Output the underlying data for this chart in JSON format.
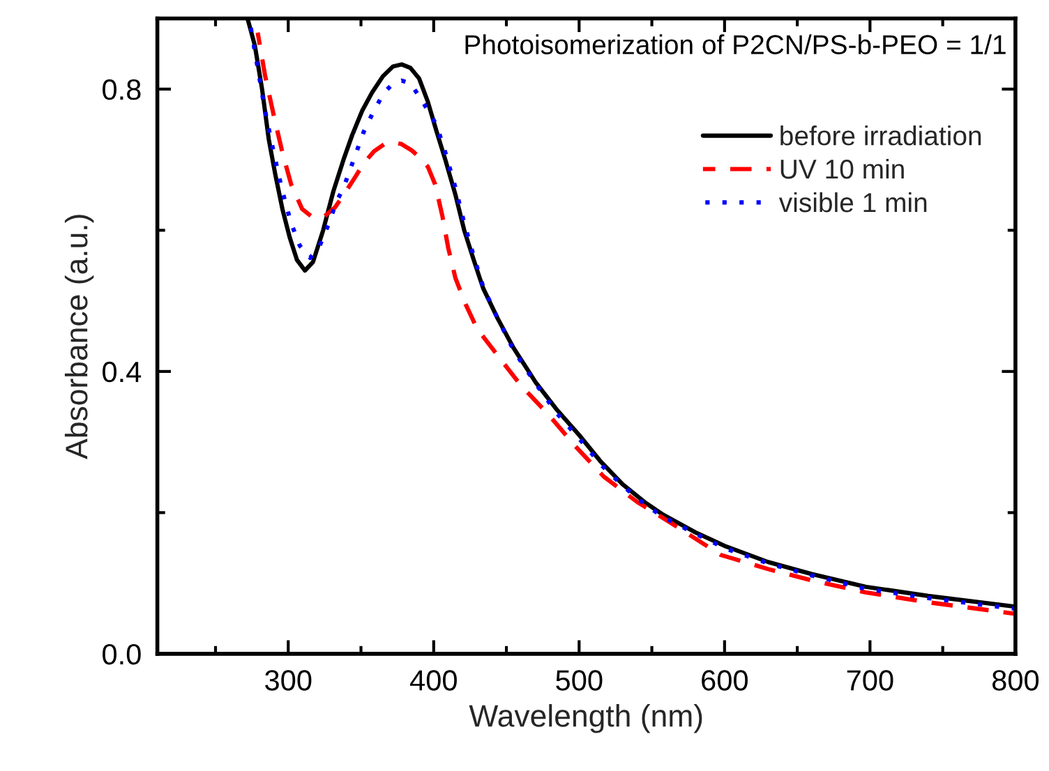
{
  "chart_data": {
    "type": "line",
    "xlabel": "Wavelength (nm)",
    "ylabel": "Absorbance (a.u.)",
    "annotations": [
      "Photoisomerization of P2CN/PS-b-PEO = 1/1"
    ],
    "xlim": [
      210,
      800
    ],
    "xticks": [
      300,
      400,
      500,
      600,
      700,
      800
    ],
    "ylim": [
      0,
      0.9
    ],
    "yticks": [
      {
        "value": 0.0,
        "label": "0.0"
      },
      0.4,
      0.8
    ],
    "grid": false,
    "legend": "top right",
    "marker": "none",
    "series": [
      {
        "name": "before irradiation",
        "color": "#000000",
        "line_style": "solid",
        "x": [
          272,
          277,
          282,
          286.6,
          291,
          296,
          301,
          306,
          311.5,
          317,
          324,
          331,
          338,
          344,
          351,
          357.6,
          365,
          372,
          378,
          384,
          390,
          396,
          402,
          408,
          415,
          421,
          428,
          434,
          444,
          455,
          470,
          485,
          500,
          515,
          530,
          545,
          557,
          580,
          601,
          630,
          660,
          697,
          740,
          799
        ],
        "values": [
          0.9,
          0.862,
          0.8,
          0.729,
          0.68,
          0.63,
          0.59,
          0.558,
          0.543,
          0.555,
          0.6,
          0.655,
          0.7,
          0.735,
          0.77,
          0.795,
          0.818,
          0.832,
          0.835,
          0.83,
          0.815,
          0.782,
          0.74,
          0.7,
          0.65,
          0.6,
          0.555,
          0.518,
          0.475,
          0.433,
          0.385,
          0.345,
          0.31,
          0.272,
          0.24,
          0.215,
          0.198,
          0.172,
          0.152,
          0.13,
          0.113,
          0.095,
          0.082,
          0.067
        ]
      },
      {
        "name": "UV 10 min",
        "color": "#ff0000",
        "line_style": "dashed",
        "x": [
          279,
          284,
          290,
          296,
          302,
          309.6,
          317,
          325,
          332,
          338,
          345,
          352,
          359,
          366,
          372,
          378,
          385,
          391,
          396,
          401,
          406,
          410,
          415,
          422,
          430,
          445,
          460,
          478.5,
          497,
          517,
          540,
          565,
          597.5,
          630,
          660,
          697,
          740,
          799
        ],
        "values": [
          0.88,
          0.82,
          0.763,
          0.71,
          0.665,
          0.63,
          0.618,
          0.62,
          0.632,
          0.65,
          0.672,
          0.695,
          0.712,
          0.722,
          0.725,
          0.722,
          0.713,
          0.702,
          0.69,
          0.665,
          0.62,
          0.575,
          0.532,
          0.495,
          0.46,
          0.42,
          0.38,
          0.34,
          0.295,
          0.251,
          0.215,
          0.183,
          0.14,
          0.12,
          0.104,
          0.087,
          0.073,
          0.057
        ]
      },
      {
        "name": "visible 1 min",
        "color": "#0000ff",
        "line_style": "dotted",
        "x": [
          274,
          279,
          284,
          290,
          296,
          302,
          308,
          315,
          321,
          328,
          333,
          338,
          345,
          352,
          359,
          366,
          372,
          378,
          384,
          390,
          396,
          402,
          408,
          415,
          421,
          428,
          434,
          444,
          455,
          470,
          485,
          500,
          515,
          530,
          545,
          557,
          580,
          601,
          630,
          660,
          697,
          740,
          799
        ],
        "values": [
          0.89,
          0.83,
          0.77,
          0.71,
          0.655,
          0.61,
          0.578,
          0.561,
          0.575,
          0.61,
          0.64,
          0.66,
          0.7,
          0.74,
          0.77,
          0.795,
          0.808,
          0.812,
          0.808,
          0.79,
          0.77,
          0.749,
          0.71,
          0.66,
          0.61,
          0.56,
          0.52,
          0.475,
          0.43,
          0.383,
          0.34,
          0.305,
          0.268,
          0.238,
          0.212,
          0.195,
          0.17,
          0.149,
          0.128,
          0.111,
          0.092,
          0.079,
          0.064
        ]
      }
    ]
  }
}
